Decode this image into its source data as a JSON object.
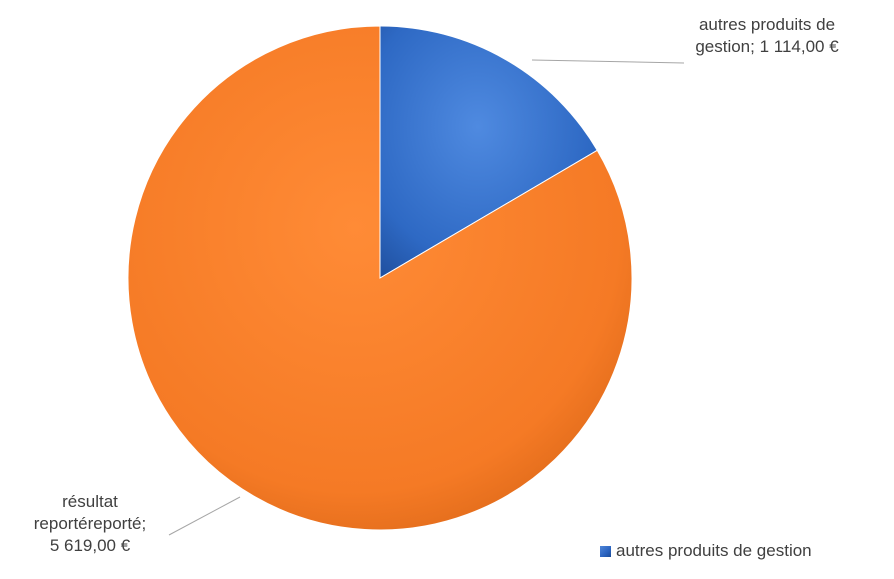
{
  "chart_data": {
    "type": "pie",
    "title": "",
    "slices": [
      {
        "label": "autres produits de gestion",
        "value": 1114.0,
        "color": "#2e69c4",
        "label_lines": [
          "autres produits de",
          "gestion; 1 114,00 €"
        ]
      },
      {
        "label": "résultat reportéreporté",
        "value": 5619.0,
        "color": "#f57a25",
        "label_lines": [
          "résultat",
          "reportéreporté;",
          "5 619,00 €"
        ]
      }
    ],
    "legend": {
      "position": "bottom-right",
      "entries": [
        "autres produits de gestion"
      ]
    },
    "start_angle": "12 o'clock",
    "direction": "clockwise"
  }
}
